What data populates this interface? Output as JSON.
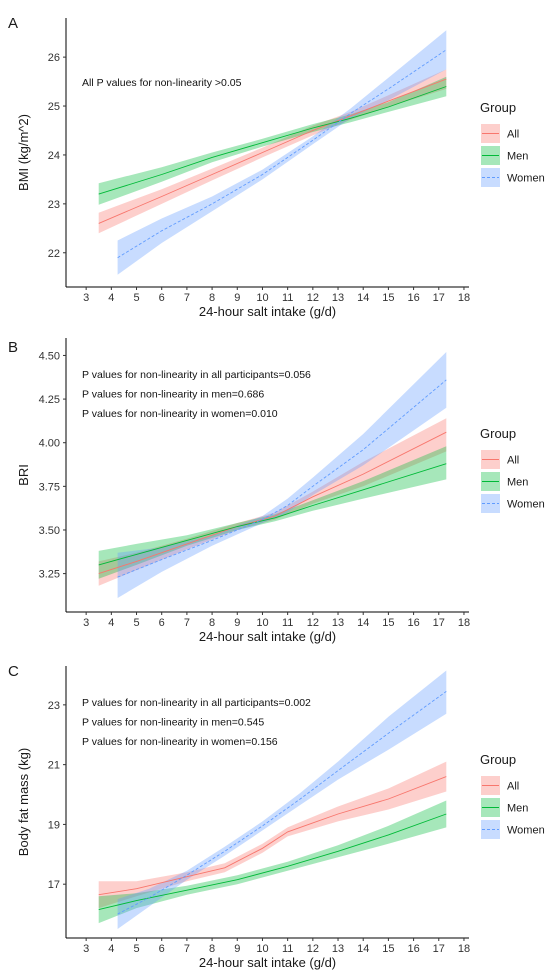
{
  "colors": {
    "all": "#f8766d",
    "men": "#00ba38",
    "women": "#619cff"
  },
  "legend": {
    "title": "Group",
    "items": [
      "All",
      "Men",
      "Women"
    ]
  },
  "chart_data": [
    {
      "type": "line",
      "panel": "A",
      "xlabel": "24-hour salt intake (g/d)",
      "ylabel": "BMI (kg/m^2)",
      "xlim": [
        2.2,
        18.2
      ],
      "ylim": [
        21.3,
        26.8
      ],
      "xticks": [
        "3",
        "4",
        "5",
        "6",
        "7",
        "8",
        "9",
        "10",
        "11",
        "12",
        "13",
        "14",
        "15",
        "16",
        "17",
        "18"
      ],
      "yticks": [
        "22",
        "23",
        "24",
        "25",
        "26"
      ],
      "annotations": [
        "All P values for non-linearity >0.05"
      ],
      "series": [
        {
          "name": "All",
          "x": [
            3.5,
            6,
            8,
            10,
            12,
            13.5,
            15,
            17.3
          ],
          "y": [
            22.6,
            23.15,
            23.6,
            24.05,
            24.5,
            24.8,
            25.1,
            25.55
          ],
          "lower": [
            22.4,
            23.0,
            23.48,
            23.95,
            24.4,
            24.72,
            24.98,
            25.35
          ],
          "upper": [
            22.82,
            23.3,
            23.72,
            24.15,
            24.6,
            24.88,
            25.22,
            25.75
          ]
        },
        {
          "name": "Men",
          "x": [
            3.5,
            6,
            8,
            10,
            12,
            13.5,
            15,
            17.3
          ],
          "y": [
            23.2,
            23.6,
            23.95,
            24.25,
            24.55,
            24.75,
            24.98,
            25.4
          ],
          "lower": [
            22.98,
            23.45,
            23.85,
            24.17,
            24.47,
            24.67,
            24.88,
            25.2
          ],
          "upper": [
            23.42,
            23.75,
            24.05,
            24.33,
            24.63,
            24.83,
            25.08,
            25.6
          ]
        },
        {
          "name": "Women",
          "x": [
            4.25,
            6,
            8,
            10,
            12,
            13.5,
            15,
            17.3
          ],
          "y": [
            21.9,
            22.45,
            23.0,
            23.6,
            24.3,
            24.85,
            25.35,
            26.15
          ],
          "lower": [
            21.55,
            22.2,
            22.85,
            23.5,
            24.22,
            24.75,
            25.12,
            25.75
          ],
          "upper": [
            22.25,
            22.7,
            23.15,
            23.7,
            24.38,
            24.95,
            25.58,
            26.55
          ]
        }
      ]
    },
    {
      "type": "line",
      "panel": "B",
      "xlabel": "24-hour salt intake (g/d)",
      "ylabel": "BRI",
      "xlim": [
        2.2,
        18.2
      ],
      "ylim": [
        3.03,
        4.6
      ],
      "xticks": [
        "3",
        "4",
        "5",
        "6",
        "7",
        "8",
        "9",
        "10",
        "11",
        "12",
        "13",
        "14",
        "15",
        "16",
        "17",
        "18"
      ],
      "yticks": [
        "3.25",
        "3.50",
        "3.75",
        "4.00",
        "4.25",
        "4.50"
      ],
      "annotations": [
        "P values for non-linearity in all participants=0.056",
        "P values for non-linearity in men=0.686",
        "P values for non-linearity in women=0.010"
      ],
      "series": [
        {
          "name": "All",
          "x": [
            3.5,
            5,
            7,
            9,
            10.5,
            12,
            14,
            17.3
          ],
          "y": [
            3.25,
            3.32,
            3.42,
            3.52,
            3.58,
            3.69,
            3.82,
            4.06
          ],
          "lower": [
            3.18,
            3.27,
            3.39,
            3.5,
            3.56,
            3.65,
            3.75,
            3.95
          ],
          "upper": [
            3.32,
            3.37,
            3.45,
            3.54,
            3.6,
            3.72,
            3.89,
            4.14
          ]
        },
        {
          "name": "Men",
          "x": [
            3.5,
            5,
            7,
            9,
            10.5,
            12,
            14,
            17.3
          ],
          "y": [
            3.3,
            3.36,
            3.44,
            3.52,
            3.57,
            3.64,
            3.73,
            3.88
          ],
          "lower": [
            3.22,
            3.3,
            3.41,
            3.5,
            3.55,
            3.61,
            3.68,
            3.79
          ],
          "upper": [
            3.38,
            3.42,
            3.47,
            3.54,
            3.59,
            3.67,
            3.78,
            3.98
          ]
        },
        {
          "name": "Women",
          "x": [
            4.25,
            6,
            8,
            10,
            11,
            12,
            14,
            17.3
          ],
          "y": [
            3.23,
            3.33,
            3.44,
            3.56,
            3.64,
            3.75,
            3.96,
            4.36
          ],
          "lower": [
            3.11,
            3.26,
            3.41,
            3.54,
            3.6,
            3.7,
            3.87,
            4.2
          ],
          "upper": [
            3.37,
            3.4,
            3.47,
            3.58,
            3.68,
            3.8,
            4.05,
            4.52
          ]
        }
      ]
    },
    {
      "type": "line",
      "panel": "C",
      "xlabel": "24-hour salt intake (g/d)",
      "ylabel": "Body fat mass (kg)",
      "xlim": [
        2.2,
        18.2
      ],
      "ylim": [
        15.2,
        24.3
      ],
      "xticks": [
        "3",
        "4",
        "5",
        "6",
        "7",
        "8",
        "9",
        "10",
        "11",
        "12",
        "13",
        "14",
        "15",
        "16",
        "17",
        "18"
      ],
      "yticks": [
        "17",
        "19",
        "21",
        "23"
      ],
      "annotations": [
        "P values for non-linearity in all participants=0.002",
        "P values for non-linearity in men=0.545",
        "P values for non-linearity in women=0.156"
      ],
      "series": [
        {
          "name": "All",
          "x": [
            3.5,
            5,
            7,
            8.5,
            10,
            11,
            12,
            13,
            15,
            17.3
          ],
          "y": [
            16.65,
            16.85,
            17.25,
            17.55,
            18.2,
            18.75,
            19.05,
            19.35,
            19.85,
            20.6
          ],
          "lower": [
            16.2,
            16.6,
            17.1,
            17.4,
            18.05,
            18.6,
            18.85,
            19.1,
            19.5,
            20.1
          ],
          "upper": [
            17.1,
            17.1,
            17.4,
            17.7,
            18.35,
            18.9,
            19.25,
            19.6,
            20.2,
            21.1
          ]
        },
        {
          "name": "Men",
          "x": [
            3.5,
            5,
            7,
            9,
            11,
            13,
            15,
            17.3
          ],
          "y": [
            16.15,
            16.45,
            16.8,
            17.15,
            17.6,
            18.1,
            18.65,
            19.35
          ],
          "lower": [
            15.7,
            16.2,
            16.65,
            17.0,
            17.45,
            17.9,
            18.35,
            18.9
          ],
          "upper": [
            16.6,
            16.7,
            16.95,
            17.3,
            17.75,
            18.3,
            18.95,
            19.8
          ]
        },
        {
          "name": "Women",
          "x": [
            4.25,
            5.5,
            7,
            8.5,
            10,
            11.5,
            13,
            15,
            17.3
          ],
          "y": [
            16.0,
            16.55,
            17.3,
            18.1,
            18.95,
            19.85,
            20.8,
            22.05,
            23.45
          ],
          "lower": [
            15.5,
            16.25,
            17.15,
            17.95,
            18.8,
            19.65,
            20.5,
            21.5,
            22.7
          ],
          "upper": [
            16.5,
            16.85,
            17.45,
            18.25,
            19.1,
            20.05,
            21.1,
            22.6,
            24.15
          ]
        }
      ]
    }
  ]
}
